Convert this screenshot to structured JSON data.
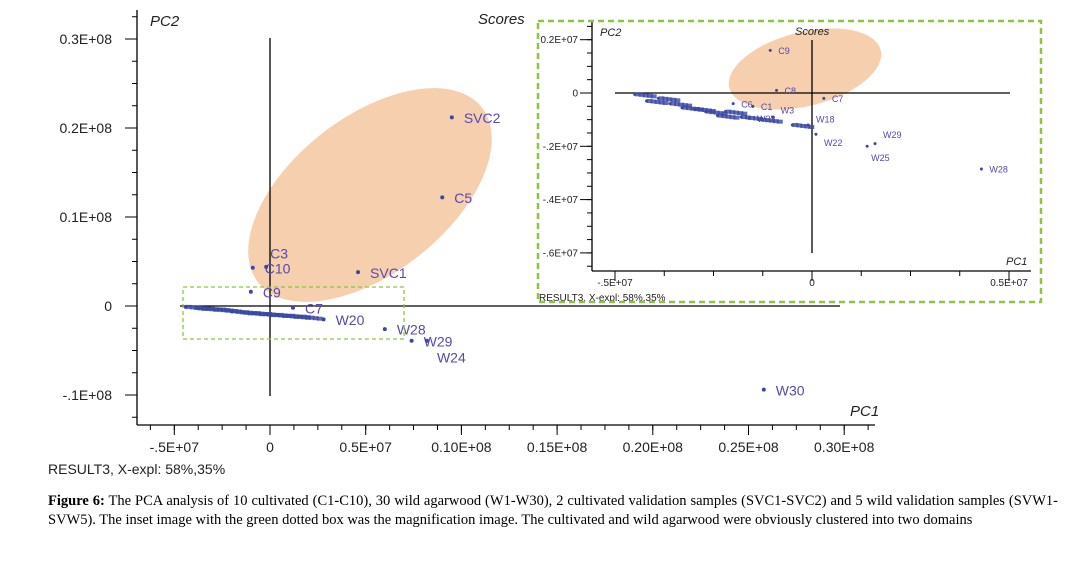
{
  "caption": {
    "label": "Figure 6:",
    "text": " The PCA analysis of 10 cultivated (C1-C10), 30 wild agarwood (W1-W30), 2 cultivated validation samples (SVC1-SVC2) and 5 wild validation samples (SVW1-SVW5). The inset image with the green dotted box was the magnification image. The cultivated and wild agarwood were obviously clustered into two domains"
  },
  "colors": {
    "points": "#3a47a6",
    "labels": "#5548b0",
    "ellipse": "#f5cfae",
    "inset_box": "#8cc63f"
  },
  "chart_data": [
    {
      "type": "scatter",
      "title": "Scores",
      "xlabel": "PC1",
      "ylabel": "PC2",
      "footer": "RESULT3, X-expl: 58%,35%",
      "xlim": [
        -7000000,
        32000000
      ],
      "ylim": [
        -13000000,
        33000000
      ],
      "x_ticks": [
        {
          "v": -5000000,
          "label": "-.5E+07"
        },
        {
          "v": 0,
          "label": "0"
        },
        {
          "v": 5000000,
          "label": "0.5E+07"
        },
        {
          "v": 10000000,
          "label": "0.10E+08"
        },
        {
          "v": 15000000,
          "label": "0.15E+08"
        },
        {
          "v": 20000000,
          "label": "0.20E+08"
        },
        {
          "v": 25000000,
          "label": "0.25E+08"
        },
        {
          "v": 30000000,
          "label": "0.30E+08"
        }
      ],
      "y_ticks": [
        {
          "v": 30000000,
          "label": "0.3E+08"
        },
        {
          "v": 20000000,
          "label": "0.2E+08"
        },
        {
          "v": 10000000,
          "label": "0.1E+08"
        },
        {
          "v": 0,
          "label": "0"
        },
        {
          "v": -10000000,
          "label": "-.1E+08"
        }
      ],
      "grid": false,
      "points": [
        {
          "label": "SVC2",
          "x": 9500000,
          "y": 21200000
        },
        {
          "label": "C5",
          "x": 9000000,
          "y": 12200000
        },
        {
          "label": "SVC1",
          "x": 4600000,
          "y": 3800000
        },
        {
          "label": "C10",
          "x": -900000,
          "y": 4300000
        },
        {
          "label": "C3",
          "x": -200000,
          "y": 4400000
        },
        {
          "label": "C9",
          "x": -1000000,
          "y": 1600000
        },
        {
          "label": "C7",
          "x": 1200000,
          "y": -200000
        },
        {
          "label": "W20",
          "x": 2800000,
          "y": -1500000
        },
        {
          "label": "W28",
          "x": 6000000,
          "y": -2600000
        },
        {
          "label": "W29",
          "x": 7400000,
          "y": -3900000
        },
        {
          "label": "W24",
          "x": 8200000,
          "y": -3900000
        },
        {
          "label": "W30",
          "x": 25800000,
          "y": -9400000
        },
        {
          "label": "",
          "x": -4400000,
          "y": -100000
        },
        {
          "label": "",
          "x": -3800000,
          "y": -200000
        },
        {
          "label": "",
          "x": -3200000,
          "y": -300000
        },
        {
          "label": "",
          "x": -2600000,
          "y": -400000
        },
        {
          "label": "",
          "x": -2000000,
          "y": -600000
        },
        {
          "label": "",
          "x": -1400000,
          "y": -700000
        },
        {
          "label": "",
          "x": -800000,
          "y": -800000
        },
        {
          "label": "",
          "x": -200000,
          "y": -900000
        },
        {
          "label": "",
          "x": 400000,
          "y": -1000000
        },
        {
          "label": "",
          "x": 1000000,
          "y": -1100000
        },
        {
          "label": "",
          "x": 1600000,
          "y": -1200000
        }
      ],
      "ellipse_group": "cultivated"
    },
    {
      "type": "scatter",
      "title": "Scores",
      "xlabel": "PC1",
      "ylabel": "PC2",
      "footer": "RESULT3, X-expl: 58%,35%",
      "xlim": [
        -6000000,
        5500000
      ],
      "ylim": [
        -6600000,
        2600000
      ],
      "x_ticks": [
        {
          "v": -5000000,
          "label": "-.5E+07"
        },
        {
          "v": 0,
          "label": "0"
        },
        {
          "v": 5000000,
          "label": "0.5E+07"
        }
      ],
      "y_ticks": [
        {
          "v": 2000000,
          "label": "0.2E+07"
        },
        {
          "v": 0,
          "label": "0"
        },
        {
          "v": -2000000,
          "label": "-.2E+07"
        },
        {
          "v": -4000000,
          "label": "-.4E+07"
        },
        {
          "v": -6000000,
          "label": "-.6E+07"
        }
      ],
      "grid": false,
      "points": [
        {
          "label": "C9",
          "x": -1060000,
          "y": 1600000
        },
        {
          "label": "C8",
          "x": -900000,
          "y": 100000
        },
        {
          "label": "C6",
          "x": -2000000,
          "y": -400000
        },
        {
          "label": "C1",
          "x": -1500000,
          "y": -500000
        },
        {
          "label": "C7",
          "x": 300000,
          "y": -200000
        },
        {
          "label": "W23",
          "x": -1600000,
          "y": -950000
        },
        {
          "label": "W3",
          "x": -1000000,
          "y": -900000
        },
        {
          "label": "W18",
          "x": -100000,
          "y": -1200000
        },
        {
          "label": "W22",
          "x": 100000,
          "y": -1550000
        },
        {
          "label": "W25",
          "x": 1400000,
          "y": -2000000
        },
        {
          "label": "W29",
          "x": 1600000,
          "y": -1900000
        },
        {
          "label": "W28",
          "x": 4300000,
          "y": -2850000
        },
        {
          "label": "",
          "x": -4500000,
          "y": -50000
        },
        {
          "label": "",
          "x": -4200000,
          "y": -300000
        },
        {
          "label": "",
          "x": -3900000,
          "y": -200000
        },
        {
          "label": "",
          "x": -3600000,
          "y": -400000
        },
        {
          "label": "",
          "x": -3300000,
          "y": -550000
        },
        {
          "label": "",
          "x": -3000000,
          "y": -600000
        },
        {
          "label": "",
          "x": -2700000,
          "y": -700000
        },
        {
          "label": "",
          "x": -2400000,
          "y": -850000
        },
        {
          "label": "",
          "x": -2200000,
          "y": -700000
        },
        {
          "label": "",
          "x": -1800000,
          "y": -900000
        },
        {
          "label": "",
          "x": -1300000,
          "y": -1000000
        },
        {
          "label": "",
          "x": -500000,
          "y": -1200000
        }
      ],
      "ellipse_group": "cultivated"
    }
  ]
}
